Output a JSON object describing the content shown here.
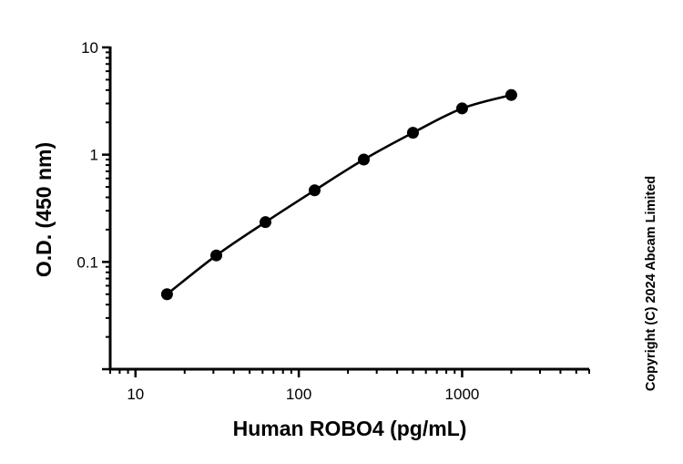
{
  "chart_data": {
    "type": "scatter",
    "xlabel": "Human ROBO4 (pg/mL)",
    "ylabel": "O.D. (450 nm)",
    "xscale": "log",
    "yscale": "log",
    "xlim": [
      7,
      6000
    ],
    "ylim": [
      0.01,
      10
    ],
    "xticks": [
      10,
      100,
      1000
    ],
    "xtick_labels": [
      "10",
      "100",
      "1000"
    ],
    "yticks": [
      0.1,
      1,
      10
    ],
    "ytick_labels": [
      "0.1",
      "1",
      "10"
    ],
    "grid": false,
    "series": [
      {
        "x": [
          15.6,
          31.25,
          62.5,
          125,
          250,
          500,
          1000,
          2000
        ],
        "y": [
          0.05,
          0.115,
          0.235,
          0.465,
          0.9,
          1.6,
          2.7,
          3.6
        ],
        "fit_curve": true,
        "color": "#000000"
      }
    ],
    "annotations": [
      {
        "text": "Copyright (C) 2024 Abcam Limited",
        "position": "right-vertical"
      }
    ]
  }
}
